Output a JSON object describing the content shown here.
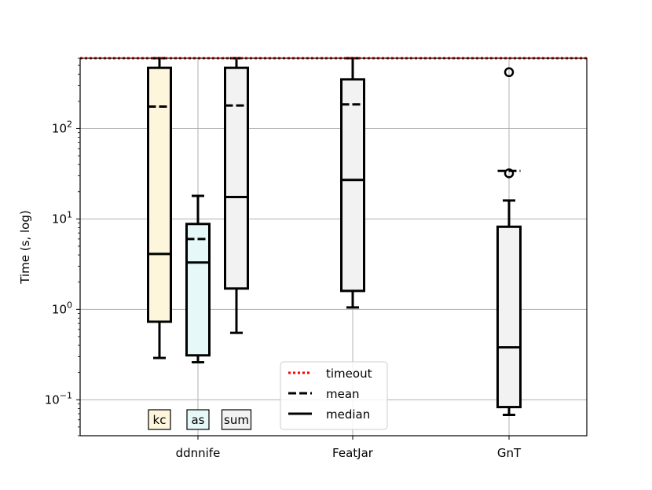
{
  "chart_data": {
    "type": "box",
    "ylabel": "Time (s, log)",
    "yscale": "log",
    "ylim": [
      0.04,
      600
    ],
    "grid": true,
    "timeout": 600,
    "categories": [
      "ddnnife",
      "FeatJar",
      "GnT"
    ],
    "yticks": [
      {
        "value": 0.1,
        "base": "10",
        "exp": "−1"
      },
      {
        "value": 1,
        "base": "10",
        "exp": "0"
      },
      {
        "value": 10,
        "base": "10",
        "exp": "1"
      },
      {
        "value": 100,
        "base": "10",
        "exp": "2"
      }
    ],
    "boxes": [
      {
        "category": "ddnnife",
        "label": "kc",
        "color": "#fdf6dd",
        "whisker_low": 0.29,
        "q1": 0.73,
        "median": 4.1,
        "mean": 175,
        "q3": 470,
        "whisker_high": 600,
        "outliers": []
      },
      {
        "category": "ddnnife",
        "label": "as",
        "color": "#e6f8f8",
        "whisker_low": 0.26,
        "q1": 0.31,
        "median": 3.3,
        "mean": 6.0,
        "q3": 8.8,
        "whisker_high": 18,
        "outliers": []
      },
      {
        "category": "ddnnife",
        "label": "sum",
        "color": "#f2f2f2",
        "whisker_low": 0.55,
        "q1": 1.7,
        "median": 17.5,
        "mean": 180,
        "q3": 470,
        "whisker_high": 600,
        "outliers": []
      },
      {
        "category": "FeatJar",
        "label": "",
        "color": "#f2f2f2",
        "whisker_low": 1.05,
        "q1": 1.6,
        "median": 27,
        "mean": 185,
        "q3": 350,
        "whisker_high": 600,
        "outliers": []
      },
      {
        "category": "GnT",
        "label": "",
        "color": "#f2f2f2",
        "whisker_low": 0.068,
        "q1": 0.083,
        "median": 0.38,
        "mean": 34,
        "q3": 8.2,
        "whisker_high": 16,
        "outliers": [
          32,
          420
        ]
      }
    ],
    "legend": {
      "position": "lower center",
      "entries": [
        {
          "label": "timeout",
          "style": "dotted",
          "color": "#ff0000"
        },
        {
          "label": "mean",
          "style": "dashed",
          "color": "#000000"
        },
        {
          "label": "median",
          "style": "solid",
          "color": "#000000"
        }
      ]
    }
  }
}
